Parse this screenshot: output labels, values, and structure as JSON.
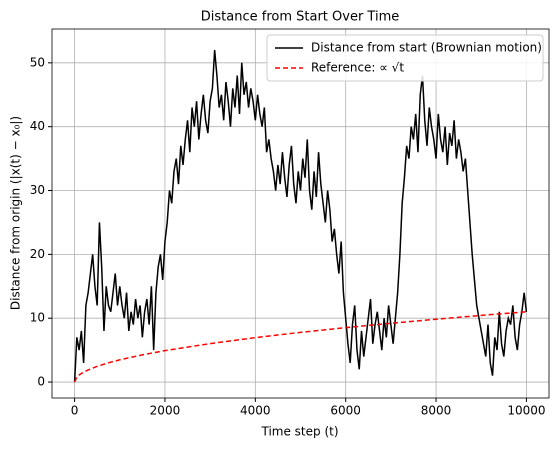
{
  "chart_data": {
    "type": "line",
    "title": "Distance from Start Over Time",
    "xlabel": "Time step (t)",
    "ylabel": "Distance from origin (|x(t) − x₀|)",
    "xlim": [
      -500,
      10500
    ],
    "ylim": [
      -2.5,
      55.3
    ],
    "xticks": [
      0,
      2000,
      4000,
      6000,
      8000,
      10000
    ],
    "yticks": [
      0,
      10,
      20,
      30,
      40,
      50
    ],
    "grid": true,
    "legend": "upper right",
    "series": [
      {
        "name": "Distance from start (Brownian motion)",
        "color": "#000000",
        "dash": "solid",
        "x": [
          0,
          50,
          100,
          150,
          200,
          250,
          300,
          350,
          400,
          450,
          500,
          550,
          600,
          650,
          700,
          750,
          800,
          850,
          900,
          950,
          1000,
          1050,
          1100,
          1150,
          1200,
          1250,
          1300,
          1350,
          1400,
          1450,
          1500,
          1550,
          1600,
          1650,
          1700,
          1750,
          1800,
          1850,
          1900,
          1950,
          2000,
          2050,
          2100,
          2150,
          2200,
          2250,
          2300,
          2350,
          2400,
          2450,
          2500,
          2550,
          2600,
          2650,
          2700,
          2750,
          2800,
          2850,
          2900,
          2950,
          3000,
          3050,
          3100,
          3150,
          3200,
          3250,
          3300,
          3350,
          3400,
          3450,
          3500,
          3550,
          3600,
          3650,
          3700,
          3750,
          3800,
          3850,
          3900,
          3950,
          4000,
          4050,
          4100,
          4150,
          4200,
          4250,
          4300,
          4350,
          4400,
          4450,
          4500,
          4550,
          4600,
          4650,
          4700,
          4750,
          4800,
          4850,
          4900,
          4950,
          5000,
          5050,
          5100,
          5150,
          5200,
          5250,
          5300,
          5350,
          5400,
          5450,
          5500,
          5550,
          5600,
          5650,
          5700,
          5750,
          5800,
          5850,
          5900,
          5950,
          6000,
          6050,
          6100,
          6150,
          6200,
          6250,
          6300,
          6350,
          6400,
          6450,
          6500,
          6550,
          6600,
          6650,
          6700,
          6750,
          6800,
          6850,
          6900,
          6950,
          7000,
          7050,
          7100,
          7150,
          7200,
          7250,
          7300,
          7350,
          7400,
          7450,
          7500,
          7550,
          7600,
          7650,
          7700,
          7750,
          7800,
          7850,
          7900,
          7950,
          8000,
          8050,
          8100,
          8150,
          8200,
          8250,
          8300,
          8350,
          8400,
          8450,
          8500,
          8550,
          8600,
          8650,
          8700,
          8750,
          8800,
          8850,
          8900,
          8950,
          9000,
          9050,
          9100,
          9150,
          9200,
          9250,
          9300,
          9350,
          9400,
          9450,
          9500,
          9550,
          9600,
          9650,
          9700,
          9750,
          9800,
          9850,
          9900,
          9950,
          10000
        ],
        "values": [
          0,
          7,
          5,
          8,
          3,
          12,
          14,
          17,
          20,
          15,
          12,
          25,
          18,
          8,
          15,
          12,
          11,
          14,
          17,
          12,
          15,
          12,
          10,
          14,
          8,
          11,
          9,
          13,
          10,
          12,
          7,
          11,
          13,
          9,
          15,
          5,
          14,
          18,
          20,
          16,
          22,
          25,
          30,
          28,
          33,
          35,
          31,
          37,
          34,
          38,
          41,
          36,
          43,
          40,
          44,
          38,
          42,
          45,
          41,
          39,
          44,
          46,
          52,
          48,
          43,
          45,
          41,
          47,
          44,
          40,
          46,
          43,
          48,
          42,
          50,
          45,
          47,
          43,
          46,
          44,
          41,
          45,
          42,
          40,
          43,
          36,
          38,
          35,
          33,
          30,
          34,
          31,
          36,
          32,
          29,
          34,
          37,
          31,
          28,
          33,
          30,
          35,
          32,
          38,
          30,
          27,
          33,
          29,
          36,
          31,
          28,
          25,
          30,
          27,
          22,
          24,
          20,
          17,
          22,
          14,
          10,
          6,
          3,
          9,
          12,
          5,
          2,
          8,
          4,
          7,
          10,
          13,
          6,
          9,
          11,
          8,
          5,
          10,
          7,
          12,
          9,
          6,
          10,
          14,
          20,
          28,
          32,
          37,
          35,
          40,
          38,
          42,
          36,
          45,
          48,
          41,
          37,
          43,
          40,
          38,
          35,
          42,
          38,
          36,
          40,
          34,
          39,
          37,
          41,
          35,
          38,
          36,
          33,
          35,
          30,
          25,
          20,
          16,
          12,
          10,
          8,
          6,
          4,
          9,
          3,
          1,
          7,
          5,
          11,
          6,
          4,
          8,
          10,
          9,
          12,
          7,
          5,
          9,
          11,
          14,
          11
        ]
      },
      {
        "name": "Reference: ∝ √t",
        "color": "#ff0000",
        "dash": "dashed",
        "x": [
          0,
          50,
          100,
          200,
          300,
          500,
          750,
          1000,
          1500,
          2000,
          3000,
          4000,
          5000,
          6000,
          7000,
          8000,
          9000,
          10000
        ],
        "values": [
          0,
          0.78,
          1.1,
          1.56,
          1.9,
          2.46,
          3.01,
          3.48,
          4.26,
          4.92,
          6.02,
          6.96,
          7.78,
          8.52,
          9.2,
          9.84,
          10.44,
          11.0
        ]
      }
    ]
  }
}
